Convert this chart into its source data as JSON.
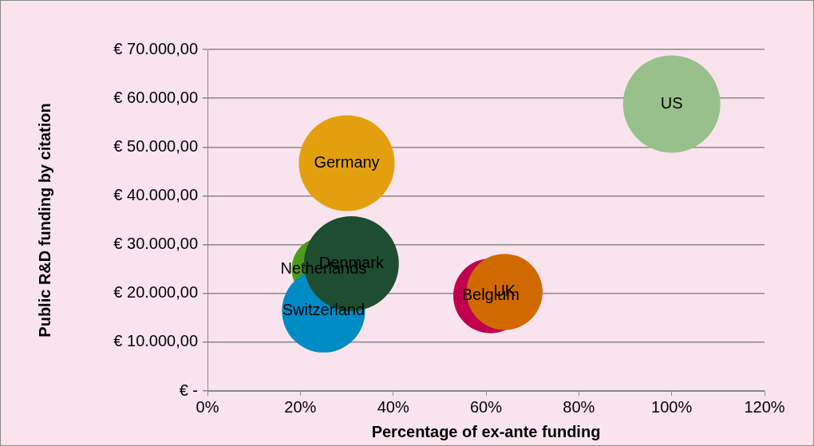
{
  "chart_data": {
    "type": "bubble",
    "xlabel": "Percentage of ex-ante funding",
    "ylabel": "Public R&D funding by citation",
    "xlim": [
      0,
      120
    ],
    "xticks": [
      {
        "value": 0,
        "label": "0%"
      },
      {
        "value": 20,
        "label": "20%"
      },
      {
        "value": 40,
        "label": "40%"
      },
      {
        "value": 60,
        "label": "60%"
      },
      {
        "value": 80,
        "label": "80%"
      },
      {
        "value": 100,
        "label": "100%"
      },
      {
        "value": 120,
        "label": "120%"
      }
    ],
    "ylim": [
      0,
      70000
    ],
    "yticks": [
      {
        "value": 0,
        "label": "€ -"
      },
      {
        "value": 10000,
        "label": "€ 10.000,00"
      },
      {
        "value": 20000,
        "label": "€ 20.000,00"
      },
      {
        "value": 30000,
        "label": "€ 30.000,00"
      },
      {
        "value": 40000,
        "label": "€ 40.000,00"
      },
      {
        "value": 50000,
        "label": "€ 50.000,00"
      },
      {
        "value": 60000,
        "label": "€ 60.000,00"
      },
      {
        "value": 70000,
        "label": "€ 70.000,00"
      }
    ],
    "grid": "y",
    "legend": false,
    "series": [
      {
        "name": "Germany",
        "color": "#e2a00f",
        "x": [
          30
        ],
        "values": [
          46700
        ],
        "sizes": [
          0.97
        ]
      },
      {
        "name": "Denmark",
        "color": "#1e4d30",
        "x": [
          31
        ],
        "values": [
          26100
        ],
        "sizes": [
          0.95
        ]
      },
      {
        "name": "UK",
        "color": "#d06a00",
        "x": [
          64
        ],
        "values": [
          20300
        ],
        "sizes": [
          0.61
        ]
      },
      {
        "name": "Switzerland",
        "color": "#008bc4",
        "x": [
          25
        ],
        "values": [
          16400
        ],
        "sizes": [
          0.73
        ]
      },
      {
        "name": "Netherlands",
        "color": "#4e9a1e",
        "x": [
          25
        ],
        "values": [
          25000
        ],
        "sizes": [
          0.43
        ]
      },
      {
        "name": "Belgium",
        "color": "#c0004f",
        "x": [
          61
        ],
        "values": [
          19500
        ],
        "sizes": [
          0.59
        ]
      },
      {
        "name": "US",
        "color": "#98c08a",
        "x": [
          100
        ],
        "values": [
          58800
        ],
        "sizes": [
          1
        ]
      }
    ]
  }
}
